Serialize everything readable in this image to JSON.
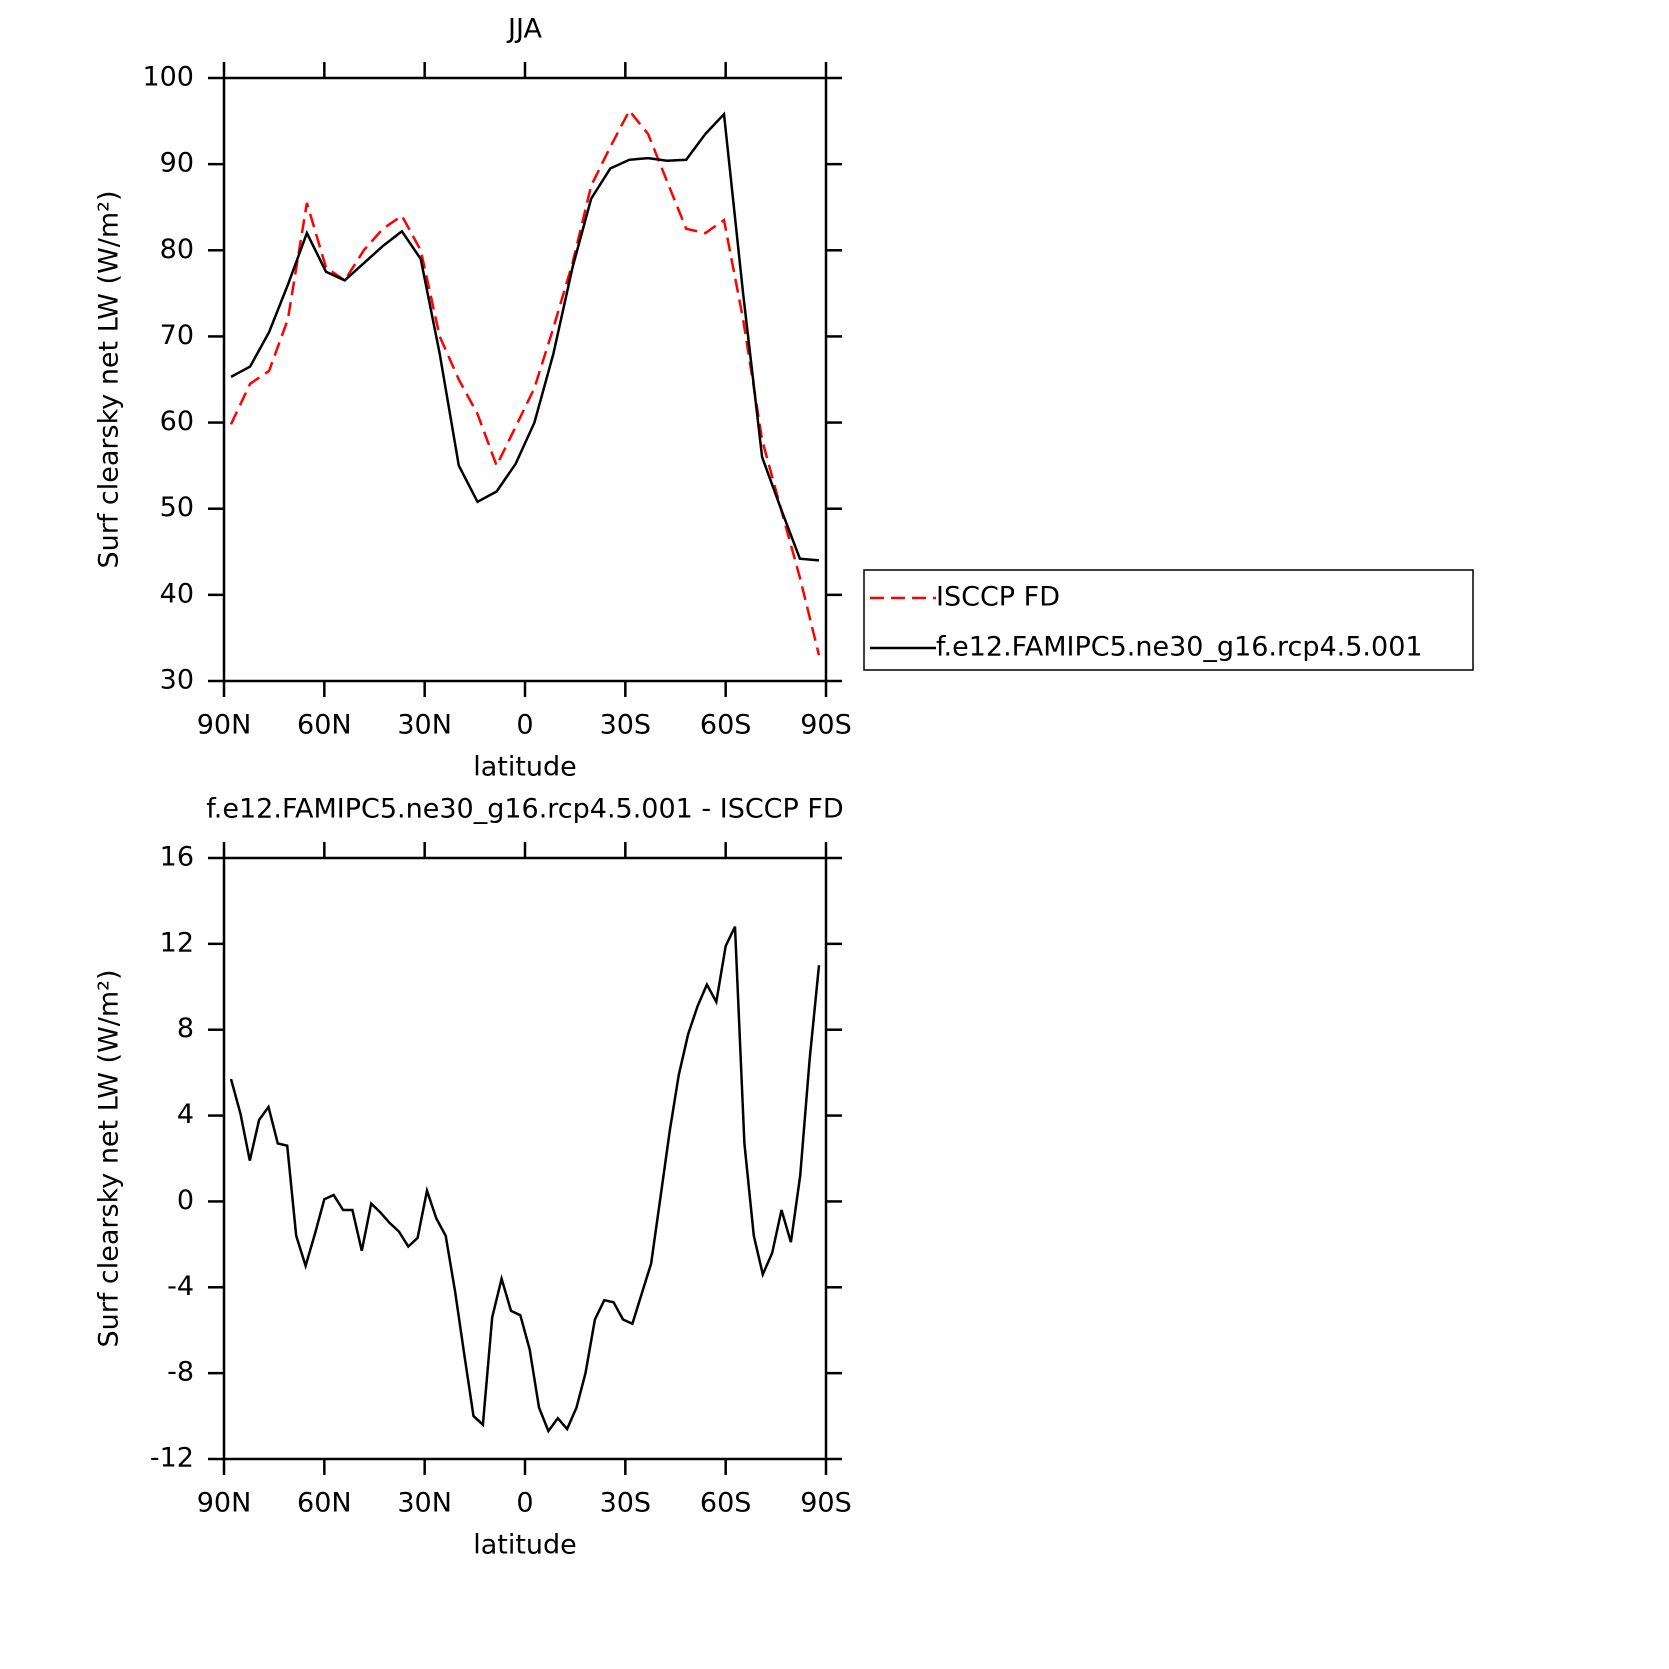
{
  "chart_data": [
    {
      "type": "line",
      "title": "JJA",
      "x_label": "latitude",
      "y_label": "Surf clearsky net LW (W/m²)",
      "x": [
        87.9,
        82.2,
        76.5,
        70.9,
        65.2,
        59.5,
        53.9,
        48.2,
        42.5,
        36.8,
        31.2,
        25.5,
        19.8,
        14.2,
        8.5,
        2.8,
        -2.8,
        -8.5,
        -14.2,
        -19.8,
        -25.5,
        -31.2,
        -36.8,
        -42.5,
        -48.2,
        -53.9,
        -59.5,
        -65.2,
        -70.9,
        -76.5,
        -82.2,
        -87.9
      ],
      "series": [
        {
          "name": "ISCCP FD",
          "color": "#ff0000",
          "style": "dashed",
          "values": [
            59.8,
            64.5,
            66,
            72,
            85.5,
            78,
            76.5,
            80,
            82.5,
            84,
            80,
            70,
            65,
            61,
            55,
            59.5,
            64,
            71,
            78.5,
            87.5,
            92,
            96.2,
            93.5,
            88,
            82.5,
            82,
            83.5,
            72,
            58,
            50,
            42,
            33
          ]
        },
        {
          "name": "f.e12.FAMIPC5.ne30_g16.rcp4.5.001",
          "color": "#000000",
          "style": "solid",
          "values": [
            65.3,
            66.5,
            70.5,
            76,
            82,
            77.5,
            76.5,
            78.5,
            80.5,
            82.2,
            79,
            68,
            55,
            50.8,
            52,
            55.2,
            60,
            68,
            78,
            86,
            89.5,
            90.5,
            90.7,
            90.4,
            90.5,
            93.5,
            95.8,
            75,
            56,
            50,
            44.2,
            44
          ]
        }
      ],
      "xlim": [
        90,
        -90
      ],
      "xticks": [
        {
          "value": 90,
          "label": "90N"
        },
        {
          "value": 60,
          "label": "60N"
        },
        {
          "value": 30,
          "label": "30N"
        },
        0,
        {
          "value": -30,
          "label": "30S"
        },
        {
          "value": -60,
          "label": "60S"
        },
        {
          "value": -90,
          "label": "90S"
        }
      ],
      "ylim": [
        30,
        100
      ],
      "yticks": [
        30,
        40,
        50,
        60,
        70,
        80,
        90,
        100
      ],
      "legend": "right"
    },
    {
      "type": "line",
      "title": "f.e12.FAMIPC5.ne30_g16.rcp4.5.001 - ISCCP FD",
      "x_label": "latitude",
      "y_label": "Surf clearsky net LW (W/m²)",
      "x": [
        87.9,
        85.1,
        82.3,
        79.5,
        76.7,
        73.9,
        71.1,
        68.4,
        65.6,
        62.8,
        60.0,
        57.2,
        54.4,
        51.6,
        48.8,
        46.0,
        43.3,
        40.5,
        37.7,
        34.9,
        32.1,
        29.3,
        26.5,
        23.7,
        20.9,
        18.1,
        15.4,
        12.6,
        9.8,
        7.0,
        4.2,
        1.4,
        -1.4,
        -4.2,
        -7.0,
        -9.8,
        -12.6,
        -15.4,
        -18.1,
        -20.9,
        -23.7,
        -26.5,
        -29.3,
        -32.1,
        -34.9,
        -37.7,
        -40.5,
        -43.3,
        -46.0,
        -48.8,
        -51.6,
        -54.4,
        -57.2,
        -60.0,
        -62.8,
        -65.6,
        -68.4,
        -71.1,
        -73.9,
        -76.7,
        -79.5,
        -82.3,
        -85.1,
        -87.9
      ],
      "values": [
        5.7,
        4.1,
        1.9,
        3.8,
        4.4,
        2.7,
        2.6,
        -1.6,
        -3.0,
        -1.5,
        0.1,
        0.3,
        -0.4,
        -0.4,
        -2.3,
        -0.1,
        -0.5,
        -1.0,
        -1.4,
        -2.1,
        -1.7,
        0.5,
        -0.8,
        -1.6,
        -4.2,
        -7.2,
        -10,
        -10.4,
        -5.4,
        -3.6,
        -5.1,
        -5.3,
        -6.9,
        -9.6,
        -10.7,
        -10.1,
        -10.6,
        -9.6,
        -8.0,
        -5.5,
        -4.6,
        -4.7,
        -5.5,
        -5.7,
        -4.3,
        -2.9,
        0.2,
        3.3,
        5.9,
        7.8,
        9.1,
        10.1,
        9.3,
        11.9,
        12.8,
        2.7,
        -1.6,
        -3.4,
        -2.4,
        -0.4,
        -1.9,
        1.2,
        6.6,
        11.0
      ],
      "color": "#000000",
      "style": "solid",
      "xlim": [
        90,
        -90
      ],
      "xticks": [
        {
          "value": 90,
          "label": "90N"
        },
        {
          "value": 60,
          "label": "60N"
        },
        {
          "value": 30,
          "label": "30N"
        },
        0,
        {
          "value": -30,
          "label": "30S"
        },
        {
          "value": -60,
          "label": "60S"
        },
        {
          "value": -90,
          "label": "90S"
        }
      ],
      "ylim": [
        -12,
        16
      ],
      "yticks": [
        -12,
        -8,
        -4,
        0,
        4,
        8,
        12,
        16
      ]
    }
  ]
}
